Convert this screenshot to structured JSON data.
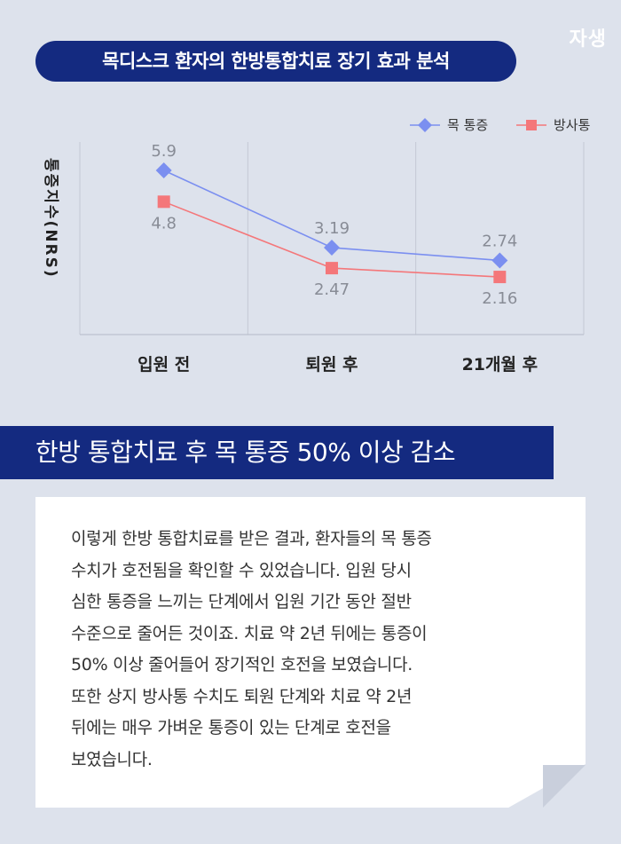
{
  "brand": "자생",
  "header": {
    "title": "목디스크 환자의 한방통합치료 장기 효과 분석"
  },
  "chart_data": {
    "type": "line",
    "categories": [
      "입원 전",
      "퇴원 후",
      "21개월 후"
    ],
    "ylabel": "통증지수(NRS)",
    "ylim": [
      0,
      7
    ],
    "grid": "vertical",
    "legend": "top-right",
    "series": [
      {
        "name": "목 통증",
        "values": [
          5.9,
          3.19,
          2.74
        ],
        "labels": [
          "5.9",
          "3.19",
          "2.74"
        ],
        "color": "#7b8ff0",
        "marker": "diamond"
      },
      {
        "name": "방사통",
        "values": [
          4.8,
          2.47,
          2.16
        ],
        "labels": [
          "4.8",
          "2.47",
          "2.16"
        ],
        "color": "#f4777a",
        "marker": "square"
      }
    ]
  },
  "banner": {
    "text": "한방 통합치료 후 목 통증 50% 이상 감소"
  },
  "body": {
    "lines": [
      "이렇게 한방 통합치료를 받은 결과,  환자들의 목 통증",
      "수치가 호전됨을 확인할 수 있었습니다. 입원 당시",
      "심한 통증을 느끼는 단계에서 입원 기간 동안 절반",
      "수준으로  줄어든 것이죠. 치료 약 2년 뒤에는 통증이",
      "50% 이상 줄어들어 장기적인 호전을 보였습니다.",
      "또한 상지 방사통 수치도 퇴원 단계와 치료 약 2년",
      "뒤에는 매우 가벼운 통증이 있는 단계로 호전을",
      "보였습니다."
    ]
  }
}
